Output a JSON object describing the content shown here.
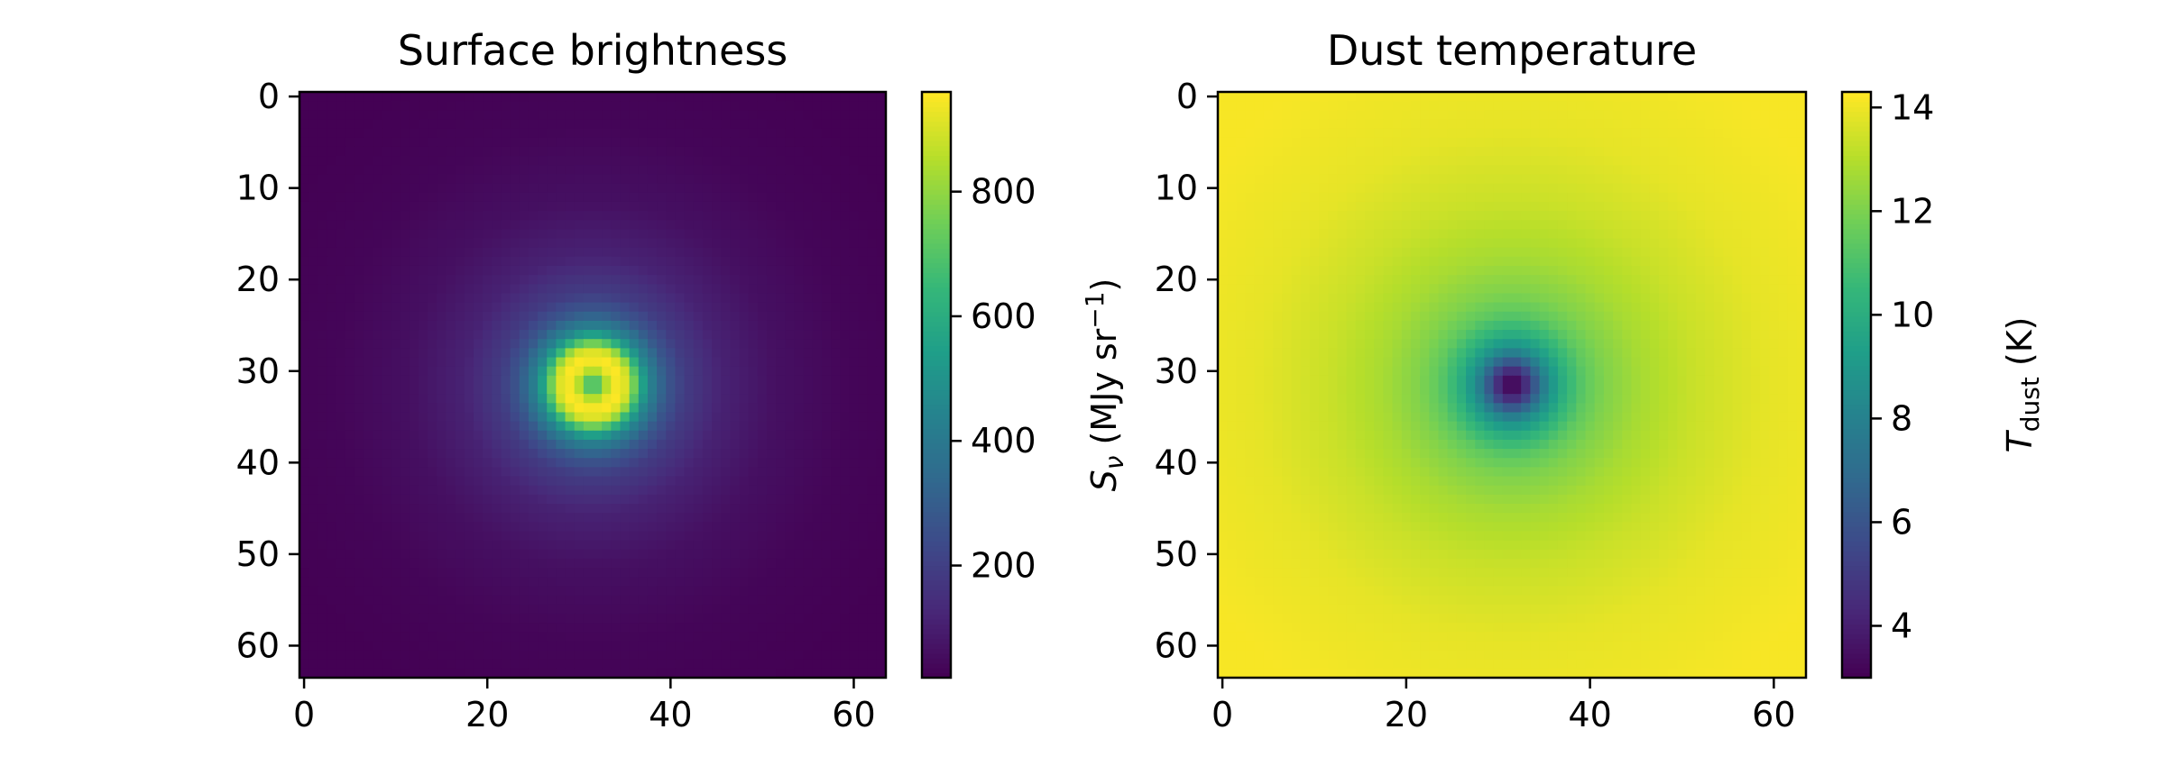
{
  "chart_data": [
    {
      "type": "heatmap",
      "title": "Surface brightness",
      "xlabel": "",
      "ylabel": "",
      "xlim": [
        -0.5,
        63.5
      ],
      "ylim": [
        63.5,
        -0.5
      ],
      "x_ticks": [
        "0",
        "20",
        "40",
        "60"
      ],
      "y_ticks": [
        "0",
        "10",
        "20",
        "30",
        "40",
        "50",
        "60"
      ],
      "grid_size": [
        64,
        64
      ],
      "center": [
        31.5,
        31.5
      ],
      "colormap": "viridis",
      "colorbar": {
        "label_prefix": "S",
        "label_sub": "ν",
        "label_rest": " (MJy sr",
        "label_sup": "−1",
        "label_close": ")",
        "range": [
          20,
          960
        ],
        "ticks": [
          "200",
          "400",
          "600",
          "800"
        ]
      },
      "profile": {
        "description_values": "radius (pixels) vs brightness (MJy/sr)",
        "radius": [
          0,
          1,
          2,
          3,
          4,
          5,
          6,
          8,
          10,
          14,
          20,
          28,
          36,
          45
        ],
        "value": [
          600,
          760,
          930,
          960,
          880,
          640,
          460,
          280,
          190,
          110,
          60,
          32,
          22,
          18
        ]
      }
    },
    {
      "type": "heatmap",
      "title": "Dust temperature",
      "xlabel": "",
      "ylabel": "",
      "xlim": [
        -0.5,
        63.5
      ],
      "ylim": [
        63.5,
        -0.5
      ],
      "x_ticks": [
        "0",
        "20",
        "40",
        "60"
      ],
      "y_ticks": [
        "0",
        "10",
        "20",
        "30",
        "40",
        "50",
        "60"
      ],
      "grid_size": [
        64,
        64
      ],
      "center": [
        31.5,
        31.5
      ],
      "colormap": "viridis",
      "colorbar": {
        "label_prefix": "T",
        "label_sub": "dust",
        "label_rest": " (K)",
        "range": [
          3.0,
          14.3
        ],
        "ticks": [
          "4",
          "6",
          "8",
          "10",
          "12",
          "14"
        ]
      },
      "profile": {
        "description_values": "radius (pixels) vs temperature (K)",
        "radius": [
          0,
          1,
          2,
          3,
          4,
          6,
          8,
          10,
          14,
          20,
          28,
          40
        ],
        "value": [
          3.0,
          3.6,
          5.2,
          7.0,
          8.6,
          10.4,
          11.5,
          12.1,
          12.8,
          13.4,
          13.9,
          14.2
        ]
      }
    }
  ],
  "colors": {
    "viridis_anchors": [
      "#440154",
      "#482878",
      "#3e4989",
      "#31688e",
      "#26828e",
      "#1f9e89",
      "#35b779",
      "#6ece58",
      "#b5de2b",
      "#fde725"
    ]
  }
}
